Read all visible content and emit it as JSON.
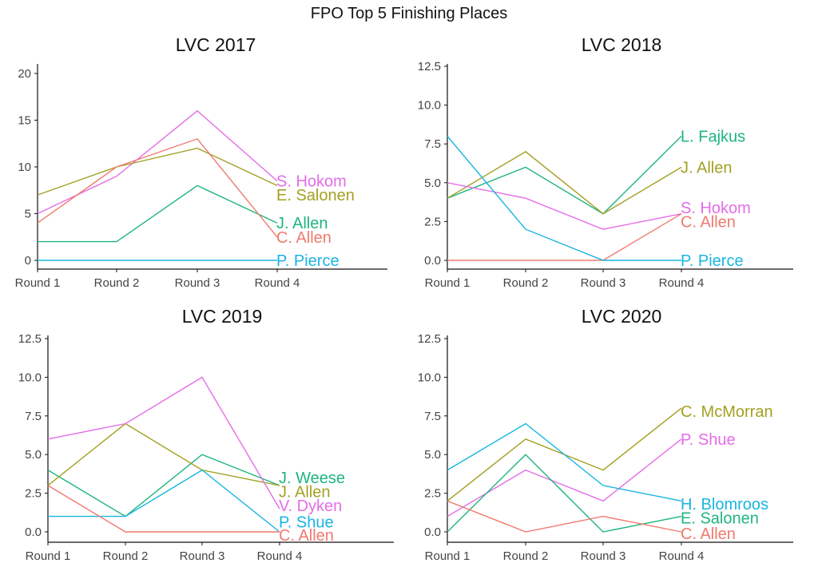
{
  "title": "FPO Top 5 Finishing Places",
  "colors": {
    "red": "#f07a6f",
    "olive": "#a3a022",
    "green": "#1fb57e",
    "blue": "#18b5e2",
    "magenta": "#e46de8"
  },
  "chart_data": [
    {
      "type": "line",
      "title": "LVC 2017",
      "categories": [
        "Round 1",
        "Round 2",
        "Round 3",
        "Round 4"
      ],
      "ylim": [
        0,
        20
      ],
      "yticks": [
        "0",
        "5",
        "10",
        "15",
        "20"
      ],
      "ytick_values": [
        0,
        5,
        10,
        15,
        20
      ],
      "grid": false,
      "series": [
        {
          "name": "S. Hokom",
          "color": "magenta",
          "values": [
            5,
            9,
            16,
            8.5
          ],
          "label_y": 8.5
        },
        {
          "name": "E. Salonen",
          "color": "olive",
          "values": [
            7,
            10,
            12,
            8
          ],
          "label_y": 7
        },
        {
          "name": "J. Allen",
          "color": "green",
          "values": [
            2,
            2,
            8,
            4
          ],
          "label_y": 4
        },
        {
          "name": "C. Allen",
          "color": "red",
          "values": [
            4,
            10,
            13,
            2.5
          ],
          "label_y": 2.5
        },
        {
          "name": "P. Pierce",
          "color": "blue",
          "values": [
            0,
            0,
            0,
            0
          ],
          "label_y": 0
        }
      ]
    },
    {
      "type": "line",
      "title": "LVC 2018",
      "categories": [
        "Round 1",
        "Round 2",
        "Round 3",
        "Round 4"
      ],
      "ylim": [
        0,
        12.5
      ],
      "yticks": [
        "0.0",
        "2.5",
        "5.0",
        "7.5",
        "10.0",
        "12.5"
      ],
      "ytick_values": [
        0,
        2.5,
        5,
        7.5,
        10,
        12.5
      ],
      "grid": false,
      "series": [
        {
          "name": "L. Fajkus",
          "color": "green",
          "values": [
            4,
            6,
            3,
            8
          ],
          "label_y": 8
        },
        {
          "name": "J. Allen",
          "color": "olive",
          "values": [
            4,
            7,
            3,
            6
          ],
          "label_y": 6
        },
        {
          "name": "S. Hokom",
          "color": "magenta",
          "values": [
            5,
            4,
            2,
            3
          ],
          "label_y": 3.4
        },
        {
          "name": "C. Allen",
          "color": "red",
          "values": [
            0,
            0,
            0,
            3
          ],
          "label_y": 2.5
        },
        {
          "name": "P. Pierce",
          "color": "blue",
          "values": [
            8,
            2,
            0,
            0
          ],
          "label_y": 0
        }
      ]
    },
    {
      "type": "line",
      "title": "LVC 2019",
      "categories": [
        "Round 1",
        "Round 2",
        "Round 3",
        "Round 4"
      ],
      "ylim": [
        0,
        12.5
      ],
      "yticks": [
        "0.0",
        "2.5",
        "5.0",
        "7.5",
        "10.0",
        "12.5"
      ],
      "ytick_values": [
        0,
        2.5,
        5,
        7.5,
        10,
        12.5
      ],
      "grid": false,
      "series": [
        {
          "name": "J. Weese",
          "color": "green",
          "values": [
            4,
            1,
            5,
            3
          ],
          "label_y": 3.5
        },
        {
          "name": "J. Allen",
          "color": "olive",
          "values": [
            3,
            7,
            4,
            3
          ],
          "label_y": 2.6
        },
        {
          "name": "V. Dyken",
          "color": "magenta",
          "values": [
            6,
            7,
            10,
            1.5
          ],
          "label_y": 1.7
        },
        {
          "name": "P. Shue",
          "color": "blue",
          "values": [
            1,
            1,
            4,
            0
          ],
          "label_y": 0.65
        },
        {
          "name": "C. Allen",
          "color": "red",
          "values": [
            3,
            0,
            0,
            0
          ],
          "label_y": -0.2
        }
      ]
    },
    {
      "type": "line",
      "title": "LVC 2020",
      "categories": [
        "Round 1",
        "Round 2",
        "Round 3",
        "Round 4"
      ],
      "ylim": [
        0,
        12.5
      ],
      "yticks": [
        "0.0",
        "2.5",
        "5.0",
        "7.5",
        "10.0",
        "12.5"
      ],
      "ytick_values": [
        0,
        2.5,
        5,
        7.5,
        10,
        12.5
      ],
      "grid": false,
      "series": [
        {
          "name": "C. McMorran",
          "color": "olive",
          "values": [
            2,
            6,
            4,
            8
          ],
          "label_y": 7.8
        },
        {
          "name": "P. Shue",
          "color": "magenta",
          "values": [
            1,
            4,
            2,
            6
          ],
          "label_y": 6
        },
        {
          "name": "H. Blomroos",
          "color": "blue",
          "values": [
            4,
            7,
            3,
            2
          ],
          "label_y": 1.8
        },
        {
          "name": "E. Salonen",
          "color": "green",
          "values": [
            0,
            5,
            0,
            1
          ],
          "label_y": 0.9
        },
        {
          "name": "C. Allen",
          "color": "red",
          "values": [
            2,
            0,
            1,
            0
          ],
          "label_y": -0.1
        }
      ]
    }
  ]
}
